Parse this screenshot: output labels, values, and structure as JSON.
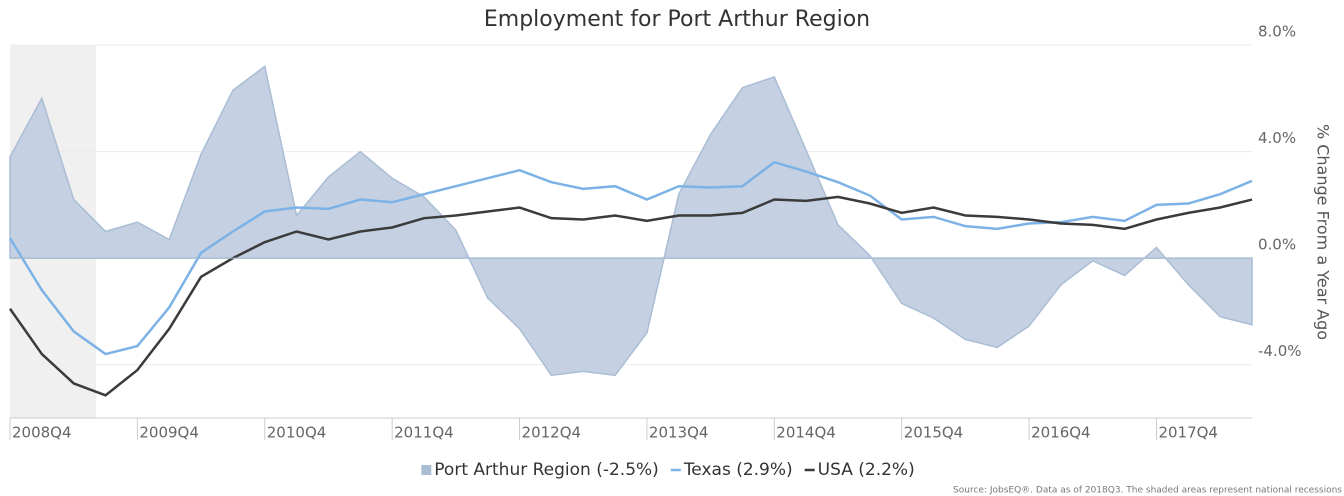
{
  "chart_data": {
    "type": "line",
    "title": "Employment for Port Arthur Region",
    "y_axis_label": "% Change From a Year Ago",
    "source": "Source: JobsEQ®. Data as of 2018Q3. The shaded areas represent national recessions",
    "categories": [
      "2008Q4",
      null,
      null,
      null,
      "2009Q4",
      null,
      null,
      null,
      "2010Q4",
      null,
      null,
      null,
      "2011Q4",
      null,
      null,
      null,
      "2012Q4",
      null,
      null,
      null,
      "2013Q4",
      null,
      null,
      null,
      "2014Q4",
      null,
      null,
      null,
      "2015Q4",
      null,
      null,
      null,
      "2016Q4",
      null,
      null,
      null,
      "2017Q4",
      null,
      null,
      null
    ],
    "recession": {
      "from": 0,
      "to": 2.7
    },
    "ylim": [
      -6,
      8
    ],
    "yticks": [
      {
        "value": 8,
        "label": "8.0%"
      },
      {
        "value": 4,
        "label": "4.0%"
      },
      {
        "value": 0,
        "label": "0.0%"
      },
      {
        "value": -4,
        "label": "-4.0%"
      }
    ],
    "grid": true,
    "series": [
      {
        "name": "Port Arthur Region (-2.5%)",
        "kind": "area",
        "color": "#c5d1e2",
        "values": [
          3.8,
          6.0,
          2.2,
          1.0,
          1.35,
          0.7,
          3.9,
          6.3,
          7.2,
          1.6,
          3.05,
          4.0,
          3.0,
          2.3,
          1.05,
          -1.5,
          -2.65,
          -4.4,
          -4.25,
          -4.4,
          -2.8,
          2.4,
          4.65,
          6.4,
          6.8,
          4.05,
          1.25,
          0.1,
          -1.7,
          -2.25,
          -3.05,
          -3.35,
          -2.55,
          -1.0,
          -0.1,
          -0.65,
          0.4,
          -1.0,
          -2.2,
          -2.5
        ]
      },
      {
        "name": "Texas (2.9%)",
        "kind": "line",
        "color": "#7cb2e6",
        "values": [
          0.75,
          -1.2,
          -2.75,
          -3.6,
          -3.3,
          -1.85,
          0.2,
          1.0,
          1.75,
          1.9,
          1.85,
          2.2,
          2.1,
          2.4,
          2.7,
          3.0,
          3.3,
          2.85,
          2.6,
          2.7,
          2.2,
          2.7,
          2.65,
          2.7,
          3.6,
          3.25,
          2.85,
          2.35,
          1.45,
          1.55,
          1.2,
          1.1,
          1.3,
          1.35,
          1.55,
          1.4,
          2.0,
          2.05,
          2.4,
          2.9
        ]
      },
      {
        "name": "USA (2.2%)",
        "kind": "line",
        "color": "#3b3b3b",
        "values": [
          -1.9,
          -3.6,
          -4.7,
          -5.15,
          -4.2,
          -2.65,
          -0.7,
          0.0,
          0.6,
          1.0,
          0.7,
          1.0,
          1.15,
          1.5,
          1.6,
          1.75,
          1.9,
          1.5,
          1.45,
          1.6,
          1.4,
          1.6,
          1.6,
          1.7,
          2.2,
          2.15,
          2.3,
          2.05,
          1.7,
          1.9,
          1.6,
          1.55,
          1.45,
          1.3,
          1.25,
          1.1,
          1.45,
          1.7,
          1.9,
          2.2
        ]
      }
    ]
  }
}
